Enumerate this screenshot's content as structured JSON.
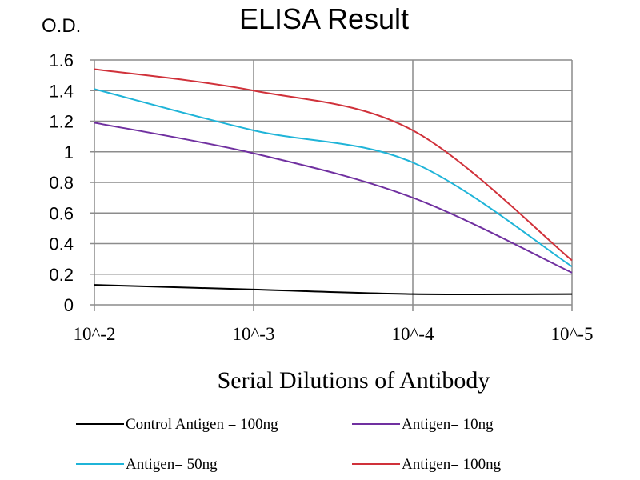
{
  "chart_data": {
    "type": "line",
    "title": "ELISA Result",
    "ylabel": "O.D.",
    "xlabel": "Serial Dilutions  of Antibody",
    "categories": [
      "10^-2",
      "10^-3",
      "10^-4",
      "10^-5"
    ],
    "ylim": [
      0,
      1.6
    ],
    "yticks": [
      "0",
      "0.2",
      "0.4",
      "0.6",
      "0.8",
      "1",
      "1.2",
      "1.4",
      "1.6"
    ],
    "grid": true,
    "legend_position": "bottom",
    "series": [
      {
        "name": "Control Antigen = 100ng",
        "color": "#000000",
        "values": [
          0.13,
          0.1,
          0.07,
          0.07
        ]
      },
      {
        "name": "Antigen= 10ng",
        "color": "#7030a0",
        "values": [
          1.19,
          0.99,
          0.7,
          0.21
        ]
      },
      {
        "name": "Antigen= 50ng",
        "color": "#1fb4d8",
        "values": [
          1.41,
          1.14,
          0.93,
          0.25
        ]
      },
      {
        "name": "Antigen= 100ng",
        "color": "#d0313a",
        "values": [
          1.54,
          1.4,
          1.14,
          0.29
        ]
      }
    ]
  }
}
